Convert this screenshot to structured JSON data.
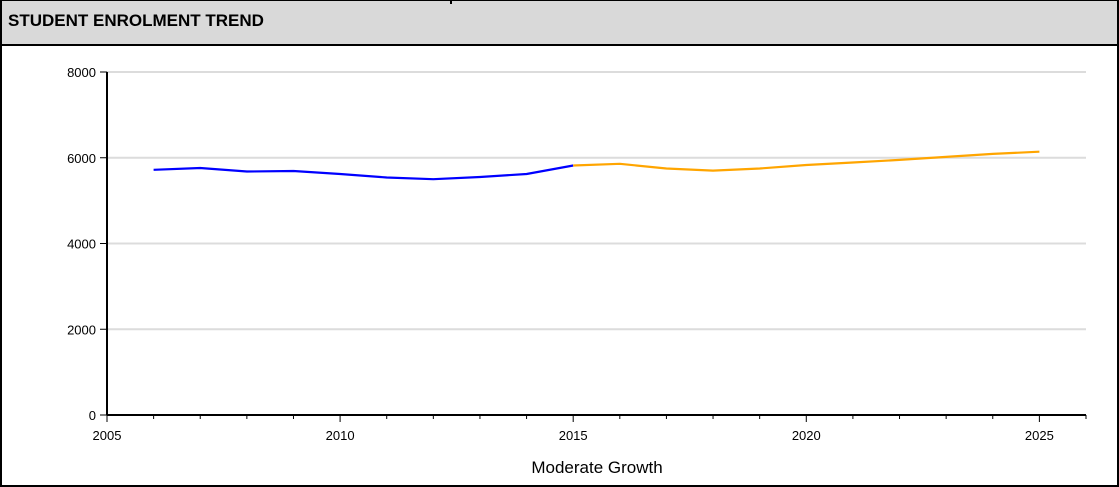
{
  "chart_data": {
    "type": "line",
    "title": "STUDENT ENROLMENT TREND",
    "xlabel": "Moderate Growth",
    "ylabel": "",
    "xlim": [
      2005,
      2026
    ],
    "ylim": [
      0,
      8000
    ],
    "x_ticks": [
      2005,
      2010,
      2015,
      2020,
      2025
    ],
    "y_ticks": [
      0,
      2000,
      4000,
      6000,
      8000
    ],
    "grid": true,
    "legend": "none",
    "series": [
      {
        "color": "#0000ff",
        "x": [
          2006,
          2007,
          2008,
          2009,
          2010,
          2011,
          2012,
          2013,
          2014,
          2015
        ],
        "y": [
          5720,
          5760,
          5680,
          5690,
          5620,
          5540,
          5500,
          5550,
          5620,
          5820
        ]
      },
      {
        "color": "#ffa500",
        "x": [
          2015,
          2016,
          2017,
          2018,
          2019,
          2020,
          2021,
          2022,
          2023,
          2024,
          2025
        ],
        "y": [
          5820,
          5860,
          5750,
          5700,
          5750,
          5830,
          5890,
          5950,
          6020,
          6090,
          6140
        ]
      }
    ]
  }
}
